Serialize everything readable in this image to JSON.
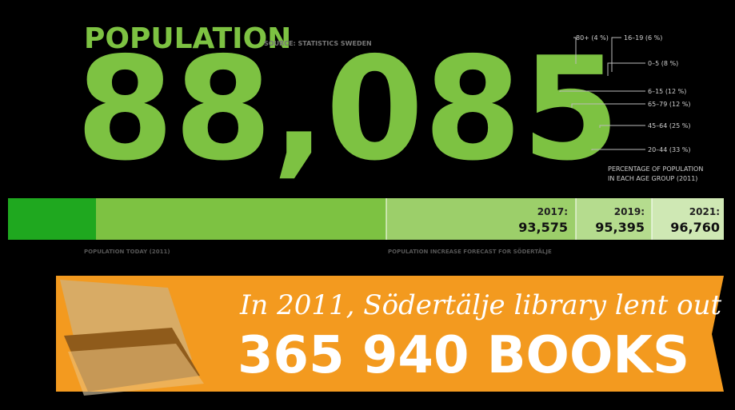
{
  "header": {
    "title": "POPULATION",
    "source": "SOURCE: STATISTICS SWEDEN"
  },
  "population": "88,085",
  "age_groups": [
    "80+ (4 %)",
    "16–19 (6 %)",
    "0–5 (8 %)",
    "6–15 (12 %)",
    "65–79 (12 %)",
    "45–64 (25 %)",
    "20–44 (33 %)"
  ],
  "age_caption": [
    "PERCENTAGE OF POPULATION",
    "IN EACH AGE GROUP (2011)"
  ],
  "forecast": [
    {
      "year": "2017:",
      "value": "93,575"
    },
    {
      "year": "2019:",
      "value": "95,395"
    },
    {
      "year": "2021:",
      "value": "96,760"
    }
  ],
  "bar_labels": {
    "today": "POPULATION TODAY (2011)",
    "forecast": "POPULATION INCREASE FORECAST FOR SÖDERTÄLJE"
  },
  "banner": {
    "line1": "In 2011, Södertälje library lent out",
    "line2": "365 940 BOOKS"
  }
}
